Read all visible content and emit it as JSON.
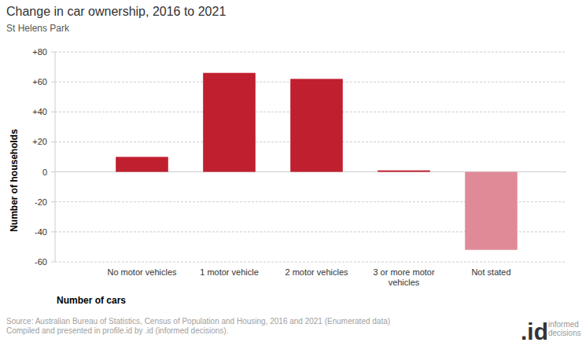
{
  "chart_data": {
    "type": "bar",
    "title": "Change in car ownership, 2016 to 2021",
    "subtitle": "St Helens Park",
    "x_label": "Number of cars",
    "y_label": "Number of households",
    "categories": [
      "No motor vehicles",
      "1 motor vehicle",
      "2 motor vehicles",
      "3 or more motor vehicles",
      "Not stated"
    ],
    "values": [
      10,
      66,
      62,
      1,
      -52
    ],
    "colors": [
      "#c01f2f",
      "#c01f2f",
      "#c01f2f",
      "#c01f2f",
      "#e08a98"
    ],
    "ylim": [
      -60,
      80
    ],
    "yticks": [
      {
        "value": 80,
        "label": "+80"
      },
      {
        "value": 60,
        "label": "+60"
      },
      {
        "value": 40,
        "label": "+40"
      },
      {
        "value": 20,
        "label": "+20"
      },
      0,
      -20,
      -40,
      -60
    ],
    "grid": true,
    "source": [
      "Source: Australian Bureau of Statistics, Census of Population and Housing, 2016 and 2021 (Enumerated data)",
      "Compiled and presented in profile.id by .id (informed decisions)."
    ],
    "logo": ".id",
    "logo_text": [
      "informed",
      "decisions"
    ]
  }
}
